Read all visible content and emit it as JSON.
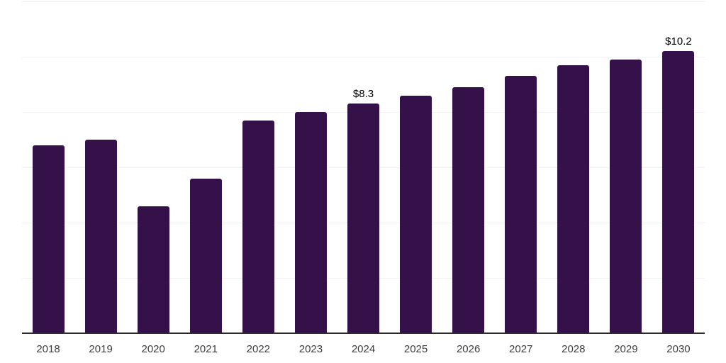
{
  "chart_data": {
    "type": "bar",
    "title": "",
    "xlabel": "",
    "ylabel": "",
    "categories": [
      "2018",
      "2019",
      "2020",
      "2021",
      "2022",
      "2023",
      "2024",
      "2025",
      "2026",
      "2027",
      "2028",
      "2029",
      "2030"
    ],
    "values": [
      6.8,
      7.0,
      4.6,
      5.6,
      7.7,
      8.0,
      8.3,
      8.6,
      8.9,
      9.3,
      9.7,
      9.9,
      10.2
    ],
    "annotations": [
      {
        "category": "2024",
        "text": "$8.3"
      },
      {
        "category": "2030",
        "text": "$10.2"
      }
    ],
    "ylim": [
      0,
      12
    ],
    "grid_step": 2,
    "grid": true,
    "legend": false,
    "colors": {
      "bar": "#351149",
      "gridline": "#f2f2f4",
      "axis_line": "#2b2b2b",
      "tick_label": "#3d3d3d",
      "value_label": "#000000",
      "background": "#ffffff"
    }
  }
}
